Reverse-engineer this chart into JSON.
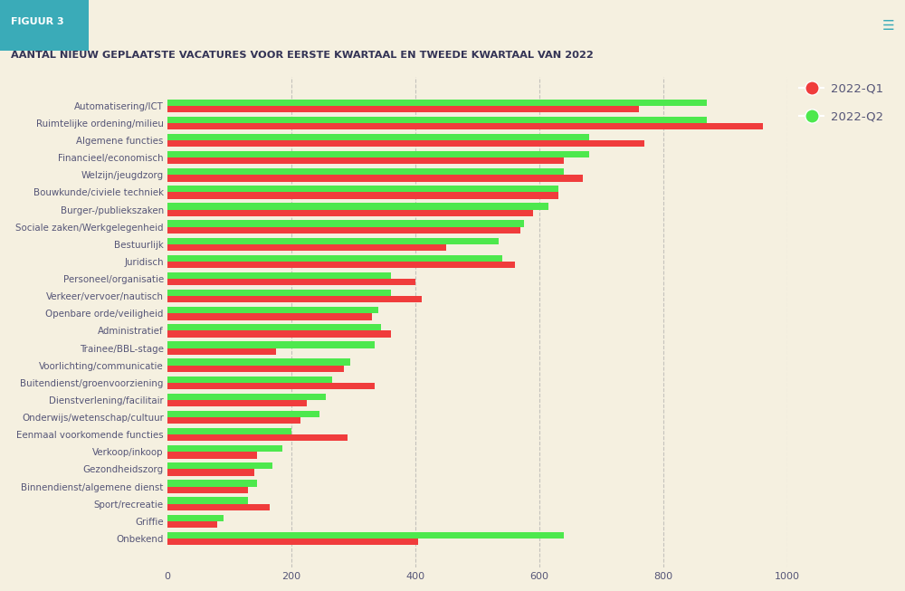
{
  "title": "AANTAL NIEUW GEPLAATSTE VACATURES VOOR EERSTE KWARTAAL EN TWEEDE KWARTAAL VAN 2022",
  "figuur_label": "FIGUUR 3",
  "categories": [
    "Automatisering/ICT",
    "Ruimtelijke ordening/milieu",
    "Algemene functies",
    "Financieel/economisch",
    "Welzijn/jeugdzorg",
    "Bouwkunde/civiele techniek",
    "Burger-/publiekszaken",
    "Sociale zaken/Werkgelegenheid",
    "Bestuurlijk",
    "Juridisch",
    "Personeel/organisatie",
    "Verkeer/vervoer/nautisch",
    "Openbare orde/veiligheid",
    "Administratief",
    "Trainee/BBL-stage",
    "Voorlichting/communicatie",
    "Buitendienst/groenvoorziening",
    "Dienstverlening/facilitair",
    "Onderwijs/wetenschap/cultuur",
    "Eenmaal voorkomende functies",
    "Verkoop/inkoop",
    "Gezondheidszorg",
    "Binnendienst/algemene dienst",
    "Sport/recreatie",
    "Griffie",
    "Onbekend"
  ],
  "q1_values": [
    760,
    960,
    770,
    640,
    670,
    630,
    590,
    570,
    450,
    560,
    400,
    410,
    330,
    360,
    175,
    285,
    335,
    225,
    215,
    290,
    145,
    140,
    130,
    165,
    80,
    405
  ],
  "q2_values": [
    870,
    870,
    680,
    680,
    640,
    630,
    615,
    575,
    535,
    540,
    360,
    360,
    340,
    345,
    335,
    295,
    265,
    255,
    245,
    200,
    185,
    170,
    145,
    130,
    90,
    640
  ],
  "q1_color": "#f03c3c",
  "q2_color": "#4de84d",
  "background_color": "#f5f0e0",
  "header_color": "#b0dde8",
  "figuur_bg_color": "#3aabb8",
  "title_color": "#333355",
  "label_color": "#555577",
  "legend_q1": "2022-Q1",
  "legend_q2": "2022-Q2",
  "xlim": [
    0,
    1000
  ],
  "xticks": [
    0,
    200,
    400,
    600,
    800,
    1000
  ],
  "grid_color": "#aaaaaa",
  "bar_height": 0.38,
  "figsize": [
    10.0,
    6.53
  ],
  "dpi": 100
}
